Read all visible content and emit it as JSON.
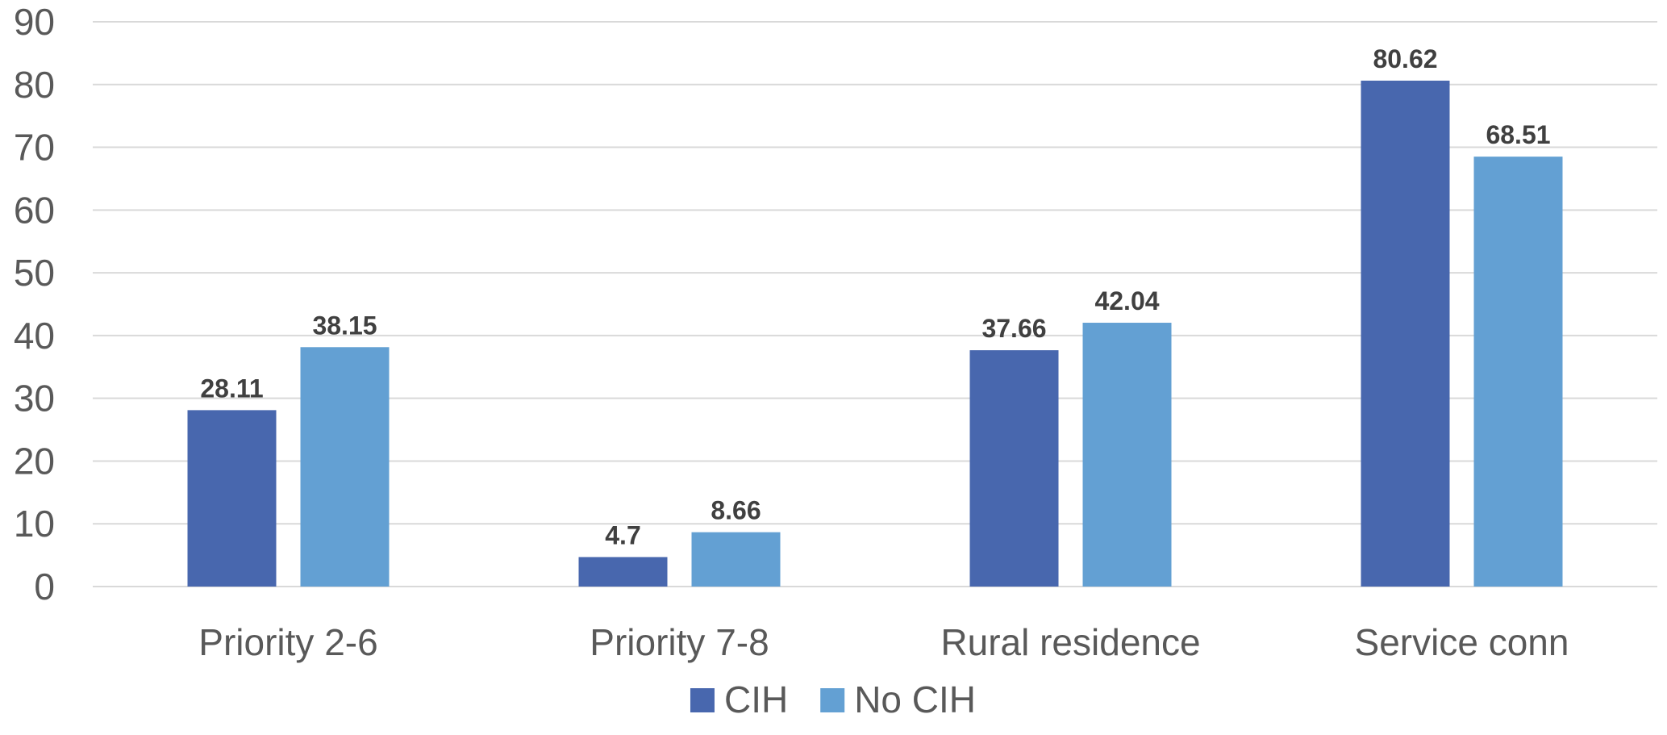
{
  "chart_data": {
    "type": "bar",
    "title": "",
    "xlabel": "",
    "ylabel": "",
    "categories": [
      "Priority 2-6",
      "Priority 7-8",
      "Rural residence",
      "Service conn"
    ],
    "series": [
      {
        "name": "CIH",
        "values": [
          28.11,
          4.7,
          37.66,
          80.62
        ],
        "labels": [
          "28.11",
          "4.7",
          "37.66",
          "80.62"
        ],
        "color": "#4867AE"
      },
      {
        "name": "No CIH",
        "values": [
          38.15,
          8.66,
          42.04,
          68.51
        ],
        "labels": [
          "38.15",
          "8.66",
          "42.04",
          "68.51"
        ],
        "color": "#63A0D3"
      }
    ],
    "ylim": [
      0,
      90
    ],
    "yticks": [
      0,
      10,
      20,
      30,
      40,
      50,
      60,
      70,
      80,
      90
    ],
    "grid": true,
    "legend_position": "bottom",
    "data_labels": true
  }
}
